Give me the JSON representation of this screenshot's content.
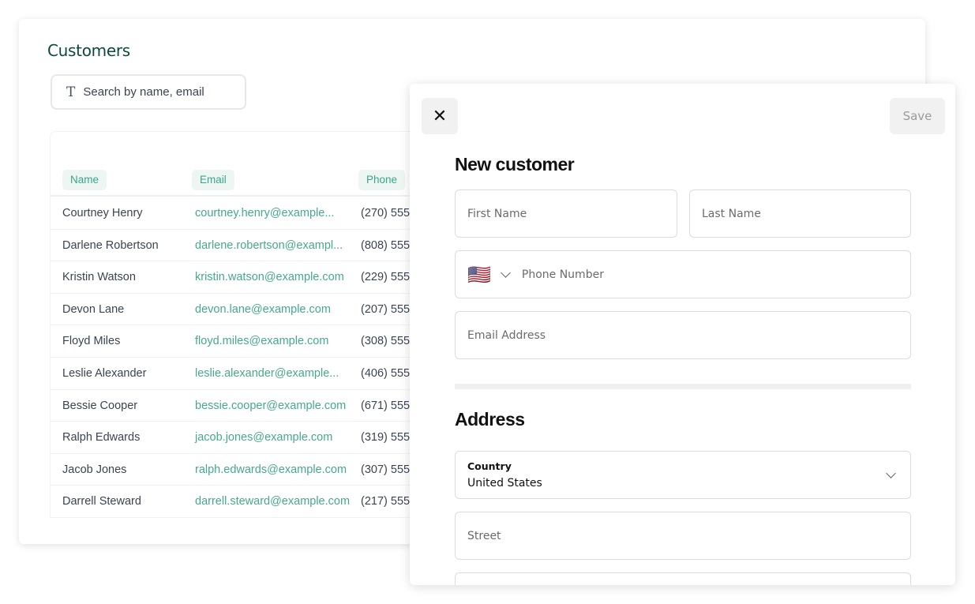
{
  "customers": {
    "title": "Customers",
    "search": {
      "placeholder": "Search by name, email",
      "icon": "text-icon",
      "icon_glyph": "T"
    },
    "columns": [
      "Name",
      "Email",
      "Phone"
    ],
    "rows": [
      {
        "name": "Courtney Henry",
        "email": "courtney.henry@example...",
        "phone": "(270) 555"
      },
      {
        "name": "Darlene Robertson",
        "email": "darlene.robertson@exampl...",
        "phone": "(808) 555"
      },
      {
        "name": "Kristin Watson",
        "email": "kristin.watson@example.com",
        "phone": "(229) 555-"
      },
      {
        "name": "Devon Lane",
        "email": "devon.lane@example.com",
        "phone": "(207) 555"
      },
      {
        "name": "Floyd Miles",
        "email": "floyd.miles@example.com",
        "phone": "(308) 555"
      },
      {
        "name": "Leslie Alexander",
        "email": "leslie.alexander@example...",
        "phone": "(406) 555"
      },
      {
        "name": "Bessie Cooper",
        "email": "bessie.cooper@example.com",
        "phone": "(671) 555-"
      },
      {
        "name": "Ralph Edwards",
        "email": "jacob.jones@example.com",
        "phone": "(319) 555-"
      },
      {
        "name": "Jacob Jones",
        "email": "ralph.edwards@example.com",
        "phone": "(307) 555"
      },
      {
        "name": "Darrell Steward",
        "email": "darrell.steward@example.com",
        "phone": "(217) 555-"
      }
    ]
  },
  "modal": {
    "close_glyph": "✕",
    "save_label": "Save",
    "title": "New customer",
    "first_name_placeholder": "First Name",
    "last_name_placeholder": "Last Name",
    "phone_flag": "🇺🇸",
    "phone_placeholder": "Phone Number",
    "email_placeholder": "Email Address",
    "address_title": "Address",
    "country_label": "Country",
    "country_value": "United States",
    "street_placeholder": "Street"
  },
  "colors": {
    "accent": "#46a88e",
    "title": "#0c4a3e"
  }
}
